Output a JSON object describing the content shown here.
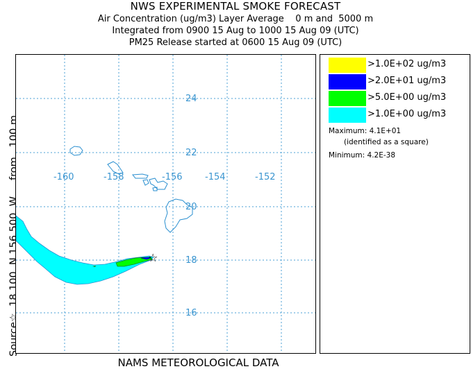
{
  "header": {
    "title": "NWS EXPERIMENTAL SMOKE FORECAST",
    "line1": "Air Concentration (ug/m3) Layer Average    0 m and  5000 m",
    "line2": "Integrated from 0900 15 Aug to 1000 15 Aug 09 (UTC)",
    "line3": "PM25 Release started at 0600 15 Aug 09 (UTC)"
  },
  "side_label": "Source☆  18.100  N 156.500  W     from   100 m",
  "map": {
    "lat_labels": [
      "24",
      "22",
      "20",
      "18",
      "16"
    ],
    "lon_labels": [
      "-160",
      "-158",
      "-156",
      "-154",
      "-152"
    ],
    "source_marker": "☆",
    "colors": {
      "coast": "#2a8fd0",
      "grid": "#4a9fd6",
      "plume_low": "#00ffff",
      "plume_mid": "#00ff00",
      "plume_high": "#0000ff"
    }
  },
  "legend": {
    "items": [
      {
        "label": ">1.0E+02 ug/m3",
        "color": "#ffff00"
      },
      {
        "label": ">2.0E+01 ug/m3",
        "color": "#0000ff"
      },
      {
        "label": ">5.0E+00 ug/m3",
        "color": "#00ff00"
      },
      {
        "label": ">1.0E+00 ug/m3",
        "color": "#00ffff"
      }
    ],
    "maximum": "Maximum: 4.1E+01",
    "max_note": "(identified as a square)",
    "minimum": "Minimum: 4.2E-38"
  },
  "footer": "NAMS METEOROLOGICAL DATA"
}
